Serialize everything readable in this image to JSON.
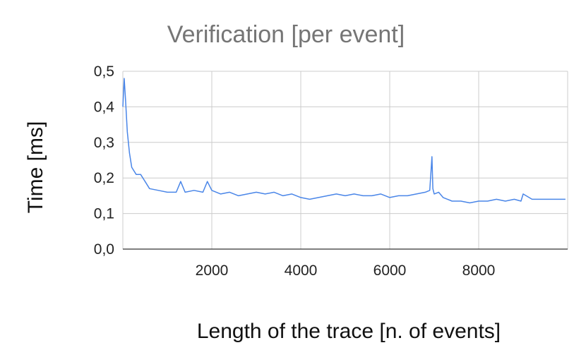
{
  "chart_data": {
    "type": "line",
    "title": "Verification [per event]",
    "xlabel": "Length of the trace [n. of events]",
    "ylabel": "Time [ms]",
    "xlim": [
      0,
      10000
    ],
    "ylim": [
      0,
      0.5
    ],
    "x_ticks": [
      2000,
      4000,
      6000,
      8000
    ],
    "x_tick_labels": [
      "2000",
      "4000",
      "6000",
      "8000"
    ],
    "y_ticks": [
      0,
      0.1,
      0.2,
      0.3,
      0.4,
      0.5
    ],
    "y_tick_labels": [
      "0,0",
      "0,1",
      "0,2",
      "0,3",
      "0,4",
      "0,5"
    ],
    "grid": true,
    "legend": "none",
    "series": [
      {
        "color": "#4a86e8",
        "x": [
          0,
          30,
          60,
          100,
          150,
          200,
          300,
          400,
          500,
          600,
          800,
          1000,
          1200,
          1300,
          1400,
          1600,
          1800,
          1900,
          2000,
          2200,
          2400,
          2600,
          2800,
          3000,
          3200,
          3400,
          3600,
          3800,
          4000,
          4200,
          4400,
          4600,
          4800,
          5000,
          5200,
          5400,
          5600,
          5800,
          6000,
          6200,
          6400,
          6600,
          6800,
          6900,
          6950,
          6970,
          7000,
          7100,
          7200,
          7300,
          7400,
          7600,
          7800,
          8000,
          8200,
          8400,
          8600,
          8800,
          8950,
          9000,
          9200,
          9500,
          9800,
          9950
        ],
        "y": [
          0.4,
          0.48,
          0.42,
          0.33,
          0.27,
          0.23,
          0.21,
          0.21,
          0.19,
          0.17,
          0.165,
          0.16,
          0.16,
          0.19,
          0.16,
          0.165,
          0.16,
          0.19,
          0.165,
          0.155,
          0.16,
          0.15,
          0.155,
          0.16,
          0.155,
          0.16,
          0.15,
          0.155,
          0.145,
          0.14,
          0.145,
          0.15,
          0.155,
          0.15,
          0.155,
          0.15,
          0.15,
          0.155,
          0.145,
          0.15,
          0.15,
          0.155,
          0.16,
          0.165,
          0.26,
          0.17,
          0.155,
          0.16,
          0.145,
          0.14,
          0.135,
          0.135,
          0.13,
          0.135,
          0.135,
          0.14,
          0.135,
          0.14,
          0.135,
          0.155,
          0.14,
          0.14,
          0.14,
          0.14
        ]
      }
    ]
  }
}
